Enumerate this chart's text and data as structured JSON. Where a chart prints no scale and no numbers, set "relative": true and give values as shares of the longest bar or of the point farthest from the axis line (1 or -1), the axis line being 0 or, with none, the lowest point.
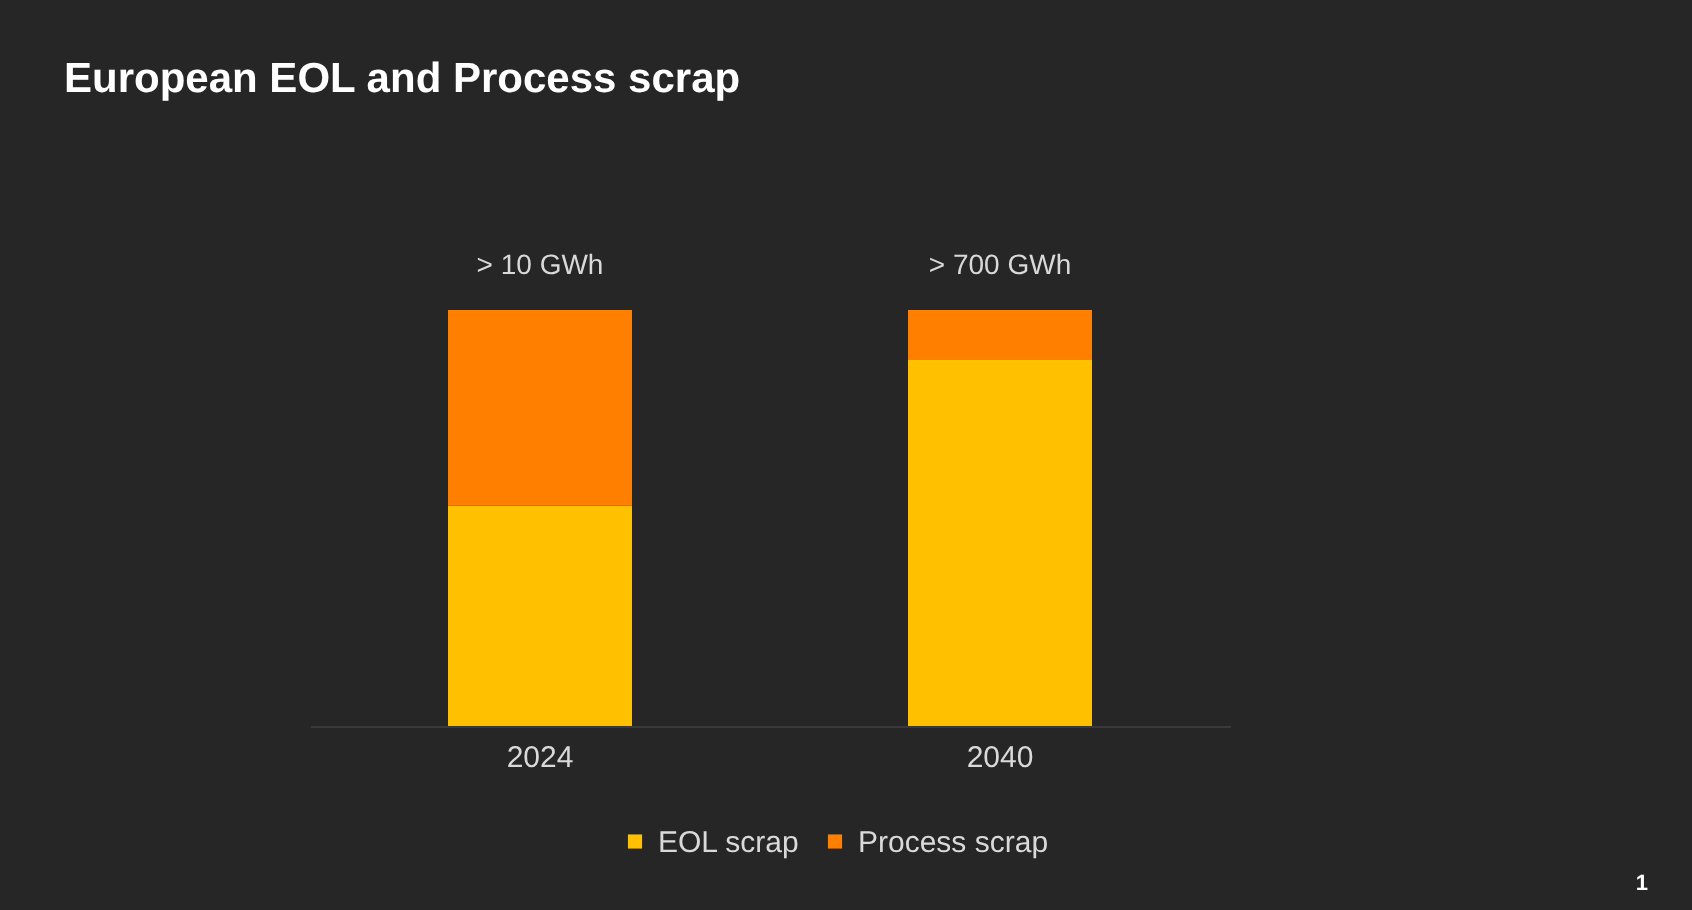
{
  "chart_data": {
    "type": "bar",
    "title": "European EOL and Process scrap",
    "categories": [
      "2024",
      "2040"
    ],
    "stacked": true,
    "relative": true,
    "series": [
      {
        "name": "EOL scrap",
        "color": "#ffc000",
        "values": [
          0.53,
          0.88
        ]
      },
      {
        "name": "Process scrap",
        "color": "#ff7f00",
        "values": [
          0.47,
          0.12
        ]
      }
    ],
    "totals": [
      "> 10 GWh",
      "> 700 GWh"
    ],
    "legend": "bottom",
    "annotations": [
      "1"
    ]
  }
}
